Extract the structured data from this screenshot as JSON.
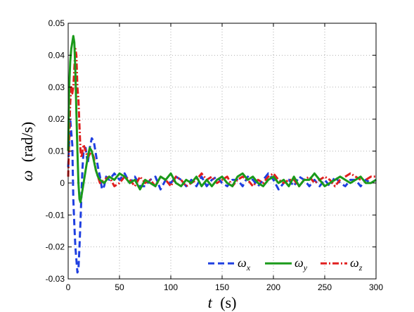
{
  "chart_data": {
    "type": "line",
    "xlabel": {
      "var": "t",
      "unit": "(s)"
    },
    "ylabel": {
      "var": "ω",
      "unit": "(rad/s)"
    },
    "xlim": [
      0,
      300
    ],
    "ylim": [
      -0.03,
      0.05
    ],
    "xticks": [
      "0",
      "50",
      "100",
      "150",
      "200",
      "250",
      "300"
    ],
    "yticks": [
      "-0.03",
      "-0.02",
      "-0.01",
      "0",
      "0.01",
      "0.02",
      "0.03",
      "0.04",
      "0.05"
    ],
    "grid": true,
    "legend": "bottom-right",
    "series": [
      {
        "name": "ω",
        "sub": "x",
        "color": "#1f3fe0",
        "dash": "9,5",
        "points": [
          [
            0,
            0.005
          ],
          [
            2,
            0.02
          ],
          [
            4,
            0.012
          ],
          [
            5,
            -0.005
          ],
          [
            6,
            -0.013
          ],
          [
            7,
            -0.02
          ],
          [
            8,
            -0.024
          ],
          [
            9,
            -0.028
          ],
          [
            10,
            -0.027
          ],
          [
            11,
            -0.02
          ],
          [
            12,
            -0.012
          ],
          [
            13,
            -0.003
          ],
          [
            14,
            0.005
          ],
          [
            15,
            0.01
          ],
          [
            17,
            0.011
          ],
          [
            19,
            0.006
          ],
          [
            21,
            0.011
          ],
          [
            23,
            0.014
          ],
          [
            25,
            0.013
          ],
          [
            27,
            0.009
          ],
          [
            29,
            0.005
          ],
          [
            31,
            0.002
          ],
          [
            33,
            -0.002
          ],
          [
            35,
            -0.001
          ],
          [
            37,
            0.002
          ],
          [
            40,
            0.001
          ],
          [
            45,
            0.003
          ],
          [
            50,
            0.001
          ],
          [
            55,
            0.003
          ],
          [
            60,
            0.0
          ],
          [
            65,
            0.002
          ],
          [
            70,
            -0.001
          ],
          [
            75,
            -0.001
          ],
          [
            80,
            0.001
          ],
          [
            85,
            0.002
          ],
          [
            90,
            -0.002
          ],
          [
            95,
            0.001
          ],
          [
            100,
            0.0
          ],
          [
            105,
            0.002
          ],
          [
            110,
            0.001
          ],
          [
            115,
            -0.001
          ],
          [
            120,
            0.001
          ],
          [
            125,
            -0.001
          ],
          [
            130,
            0.002
          ],
          [
            135,
            -0.001
          ],
          [
            140,
            0.001
          ],
          [
            145,
            0.002
          ],
          [
            150,
            0.0
          ],
          [
            155,
            -0.001
          ],
          [
            160,
            0.001
          ],
          [
            165,
            0.001
          ],
          [
            170,
            -0.001
          ],
          [
            175,
            0.002
          ],
          [
            180,
            0.001
          ],
          [
            185,
            -0.001
          ],
          [
            190,
            0.001
          ],
          [
            195,
            0.003
          ],
          [
            200,
            0.001
          ],
          [
            205,
            -0.002
          ],
          [
            210,
            0.0
          ],
          [
            215,
            0.001
          ],
          [
            220,
            -0.001
          ],
          [
            225,
            0.002
          ],
          [
            230,
            0.001
          ],
          [
            235,
            -0.001
          ],
          [
            240,
            0.001
          ],
          [
            245,
            -0.001
          ],
          [
            250,
            0.001
          ],
          [
            255,
            -0.001
          ],
          [
            260,
            0.002
          ],
          [
            265,
            0.0
          ],
          [
            270,
            -0.001
          ],
          [
            275,
            0.001
          ],
          [
            280,
            0.001
          ],
          [
            285,
            -0.001
          ],
          [
            290,
            0.001
          ],
          [
            295,
            0.0
          ],
          [
            300,
            0.001
          ]
        ]
      },
      {
        "name": "ω",
        "sub": "y",
        "color": "#1a9a1a",
        "dash": "",
        "points": [
          [
            0,
            0.01
          ],
          [
            1,
            0.03
          ],
          [
            2,
            0.038
          ],
          [
            3,
            0.042
          ],
          [
            4,
            0.044
          ],
          [
            5,
            0.046
          ],
          [
            6,
            0.044
          ],
          [
            7,
            0.035
          ],
          [
            8,
            0.022
          ],
          [
            9,
            0.01
          ],
          [
            10,
            0.0
          ],
          [
            11,
            -0.005
          ],
          [
            12,
            -0.006
          ],
          [
            13,
            -0.004
          ],
          [
            15,
            0.0
          ],
          [
            17,
            0.004
          ],
          [
            19,
            0.008
          ],
          [
            21,
            0.011
          ],
          [
            23,
            0.01
          ],
          [
            25,
            0.007
          ],
          [
            27,
            0.004
          ],
          [
            29,
            0.002
          ],
          [
            31,
            0.001
          ],
          [
            35,
            0.0
          ],
          [
            40,
            0.002
          ],
          [
            45,
            0.001
          ],
          [
            50,
            0.003
          ],
          [
            55,
            0.002
          ],
          [
            60,
            0.0
          ],
          [
            65,
            0.001
          ],
          [
            70,
            -0.002
          ],
          [
            75,
            0.001
          ],
          [
            80,
            0.0
          ],
          [
            85,
            -0.001
          ],
          [
            90,
            0.002
          ],
          [
            95,
            0.001
          ],
          [
            100,
            0.003
          ],
          [
            105,
            0.0
          ],
          [
            110,
            -0.001
          ],
          [
            115,
            0.001
          ],
          [
            120,
            0.0
          ],
          [
            125,
            0.002
          ],
          [
            130,
            -0.001
          ],
          [
            135,
            0.001
          ],
          [
            140,
            -0.001
          ],
          [
            145,
            0.001
          ],
          [
            150,
            0.002
          ],
          [
            155,
            0.0
          ],
          [
            160,
            -0.001
          ],
          [
            165,
            0.002
          ],
          [
            170,
            0.003
          ],
          [
            175,
            0.001
          ],
          [
            180,
            0.002
          ],
          [
            185,
            0.0
          ],
          [
            190,
            -0.001
          ],
          [
            195,
            0.001
          ],
          [
            200,
            0.002
          ],
          [
            205,
            0.0
          ],
          [
            210,
            0.001
          ],
          [
            215,
            -0.001
          ],
          [
            220,
            0.002
          ],
          [
            225,
            -0.001
          ],
          [
            230,
            0.001
          ],
          [
            235,
            0.001
          ],
          [
            240,
            0.003
          ],
          [
            245,
            0.001
          ],
          [
            250,
            -0.001
          ],
          [
            255,
            0.0
          ],
          [
            260,
            0.001
          ],
          [
            265,
            0.002
          ],
          [
            270,
            0.001
          ],
          [
            275,
            0.0
          ],
          [
            280,
            0.001
          ],
          [
            285,
            0.002
          ],
          [
            290,
            0.0
          ],
          [
            295,
            0.0
          ],
          [
            300,
            0.001
          ]
        ]
      },
      {
        "name": "ω",
        "sub": "z",
        "color": "#e01f1f",
        "dash": "9,3,2,3",
        "points": [
          [
            0,
            0.002
          ],
          [
            1,
            0.014
          ],
          [
            2,
            0.025
          ],
          [
            3,
            0.03
          ],
          [
            4,
            0.028
          ],
          [
            5,
            0.03
          ],
          [
            6,
            0.036
          ],
          [
            7,
            0.042
          ],
          [
            8,
            0.04
          ],
          [
            9,
            0.03
          ],
          [
            10,
            0.026
          ],
          [
            11,
            0.018
          ],
          [
            12,
            0.01
          ],
          [
            13,
            0.008
          ],
          [
            15,
            0.012
          ],
          [
            17,
            0.01
          ],
          [
            19,
            0.008
          ],
          [
            21,
            0.009
          ],
          [
            23,
            0.01
          ],
          [
            25,
            0.008
          ],
          [
            27,
            0.004
          ],
          [
            29,
            0.002
          ],
          [
            31,
            0.0
          ],
          [
            35,
            0.001
          ],
          [
            40,
            0.002
          ],
          [
            45,
            -0.001
          ],
          [
            50,
            0.0
          ],
          [
            55,
            0.002
          ],
          [
            60,
            0.001
          ],
          [
            65,
            -0.001
          ],
          [
            70,
            0.002
          ],
          [
            75,
            0.0
          ],
          [
            80,
            0.001
          ],
          [
            85,
            -0.001
          ],
          [
            90,
            0.002
          ],
          [
            95,
            0.001
          ],
          [
            100,
            -0.001
          ],
          [
            105,
            0.002
          ],
          [
            110,
            0.001
          ],
          [
            115,
            -0.001
          ],
          [
            120,
            0.0
          ],
          [
            125,
            0.001
          ],
          [
            130,
            0.003
          ],
          [
            135,
            0.001
          ],
          [
            140,
            0.002
          ],
          [
            145,
            0.0
          ],
          [
            150,
            0.001
          ],
          [
            155,
            0.002
          ],
          [
            160,
            -0.001
          ],
          [
            165,
            0.001
          ],
          [
            170,
            0.002
          ],
          [
            175,
            0.001
          ],
          [
            180,
            -0.001
          ],
          [
            185,
            0.001
          ],
          [
            190,
            0.0
          ],
          [
            195,
            0.002
          ],
          [
            200,
            0.003
          ],
          [
            205,
            0.001
          ],
          [
            210,
            0.0
          ],
          [
            215,
            0.001
          ],
          [
            220,
            0.001
          ],
          [
            225,
            -0.001
          ],
          [
            230,
            0.001
          ],
          [
            235,
            0.002
          ],
          [
            240,
            0.0
          ],
          [
            245,
            0.001
          ],
          [
            250,
            0.002
          ],
          [
            255,
            0.001
          ],
          [
            260,
            -0.001
          ],
          [
            265,
            0.001
          ],
          [
            270,
            0.002
          ],
          [
            275,
            0.003
          ],
          [
            280,
            0.002
          ],
          [
            285,
            0.001
          ],
          [
            290,
            0.001
          ],
          [
            295,
            0.002
          ],
          [
            300,
            0.002
          ]
        ]
      }
    ]
  }
}
